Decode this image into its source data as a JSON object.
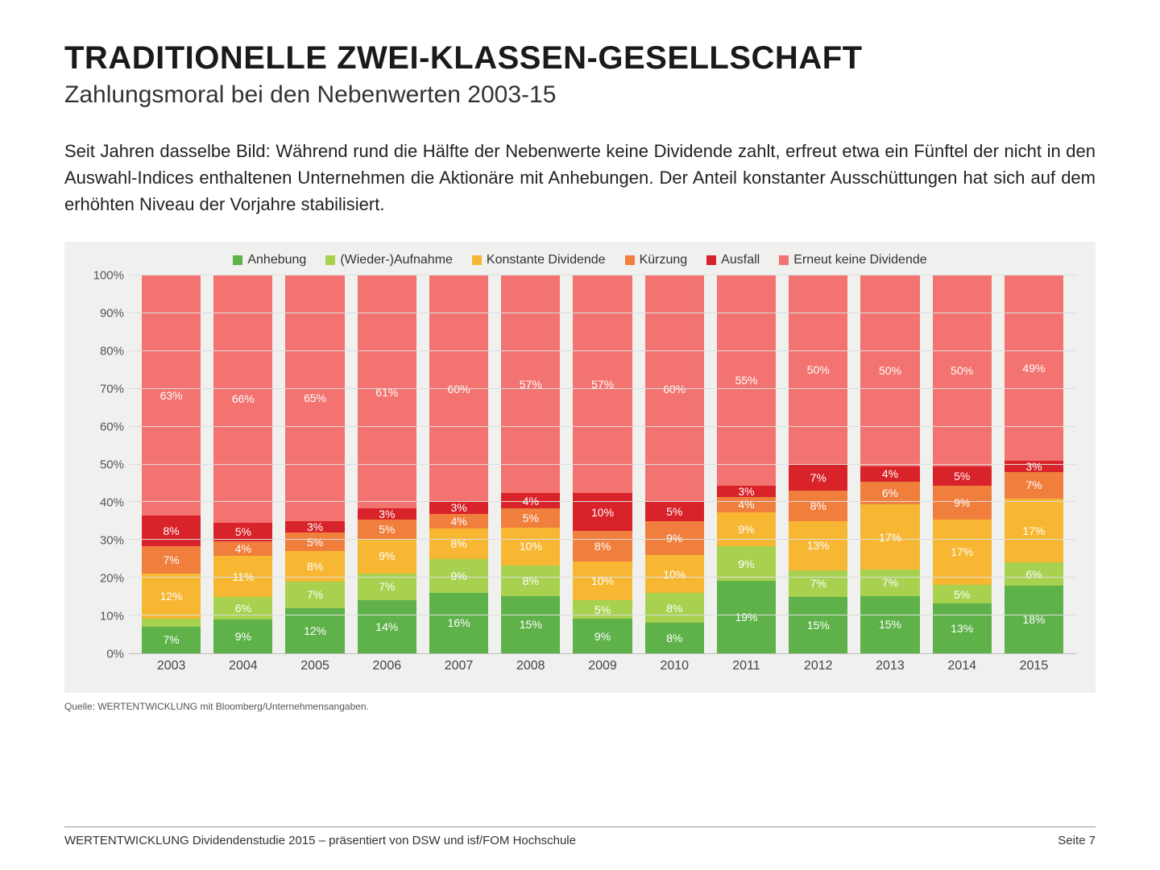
{
  "title": "TRADITIONELLE ZWEI-KLASSEN-GESELLSCHAFT",
  "subtitle": "Zahlungsmoral bei den Nebenwerten 2003-15",
  "body": "Seit Jahren dasselbe Bild: Während rund die Hälfte der Nebenwerte keine Dividende zahlt, erfreut etwa ein Fünftel der nicht in den Auswahl-Indices enthaltenen Unternehmen die Aktionäre mit Anhebungen. Der Anteil konstanter Ausschüttungen hat sich auf dem erhöhten Niveau der Vorjahre stabilisiert.",
  "source": "Quelle: WERTENTWICKLUNG mit Bloomberg/Unternehmensangaben.",
  "footer_left": "WERTENTWICKLUNG Dividendenstudie 2015 – präsentiert von DSW und isf/FOM Hochschule",
  "footer_right": "Seite 7",
  "chart": {
    "type": "stacked-bar",
    "ylim": [
      0,
      100
    ],
    "ytick_step": 10,
    "ytick_suffix": "%",
    "background_color": "#f0f0ee",
    "grid_color": "#dddddd",
    "label_fontsize": 15,
    "value_fontsize": 14,
    "value_color": "#ffffff",
    "categories": [
      "2003",
      "2004",
      "2005",
      "2006",
      "2007",
      "2008",
      "2009",
      "2010",
      "2011",
      "2012",
      "2013",
      "2014",
      "2015"
    ],
    "series": [
      {
        "key": "anhebung",
        "label": "Anhebung",
        "color": "#5fb24a"
      },
      {
        "key": "wieder",
        "label": "(Wieder-)Aufnahme",
        "color": "#a7d14f"
      },
      {
        "key": "konstant",
        "label": "Konstante Dividende",
        "color": "#f7b733"
      },
      {
        "key": "kuerzung",
        "label": "Kürzung",
        "color": "#f07e3d"
      },
      {
        "key": "ausfall",
        "label": "Ausfall",
        "color": "#d8232a"
      },
      {
        "key": "erneut",
        "label": "Erneut keine Dividende",
        "color": "#f2736f"
      }
    ],
    "data": [
      {
        "anhebung": 7,
        "wieder": 2,
        "konstant": 12,
        "kuerzung": 7,
        "ausfall": 8,
        "erneut": 63,
        "hide": [
          "wieder"
        ]
      },
      {
        "anhebung": 9,
        "wieder": 6,
        "konstant": 11,
        "kuerzung": 4,
        "ausfall": 5,
        "erneut": 66,
        "hide": []
      },
      {
        "anhebung": 12,
        "wieder": 7,
        "konstant": 8,
        "kuerzung": 5,
        "ausfall": 3,
        "erneut": 65
      },
      {
        "anhebung": 14,
        "wieder": 7,
        "konstant": 9,
        "kuerzung": 5,
        "ausfall": 3,
        "erneut": 61
      },
      {
        "anhebung": 16,
        "wieder": 9,
        "konstant": 8,
        "kuerzung": 4,
        "ausfall": 3,
        "erneut": 60
      },
      {
        "anhebung": 15,
        "wieder": 8,
        "konstant": 10,
        "kuerzung": 5,
        "ausfall": 4,
        "erneut": 57
      },
      {
        "anhebung": 9,
        "wieder": 5,
        "konstant": 10,
        "kuerzung": 8,
        "ausfall": 10,
        "erneut": 57
      },
      {
        "anhebung": 8,
        "wieder": 8,
        "konstant": 10,
        "kuerzung": 9,
        "ausfall": 5,
        "erneut": 60
      },
      {
        "anhebung": 19,
        "wieder": 9,
        "konstant": 9,
        "kuerzung": 4,
        "ausfall": 3,
        "erneut": 55
      },
      {
        "anhebung": 15,
        "wieder": 7,
        "konstant": 13,
        "kuerzung": 8,
        "ausfall": 7,
        "erneut": 50
      },
      {
        "anhebung": 15,
        "wieder": 7,
        "konstant": 17,
        "kuerzung": 6,
        "ausfall": 4,
        "erneut": 50
      },
      {
        "anhebung": 13,
        "wieder": 5,
        "konstant": 17,
        "kuerzung": 9,
        "ausfall": 5,
        "erneut": 50
      },
      {
        "anhebung": 18,
        "wieder": 6,
        "konstant": 17,
        "kuerzung": 7,
        "ausfall": 3,
        "erneut": 49
      }
    ]
  }
}
